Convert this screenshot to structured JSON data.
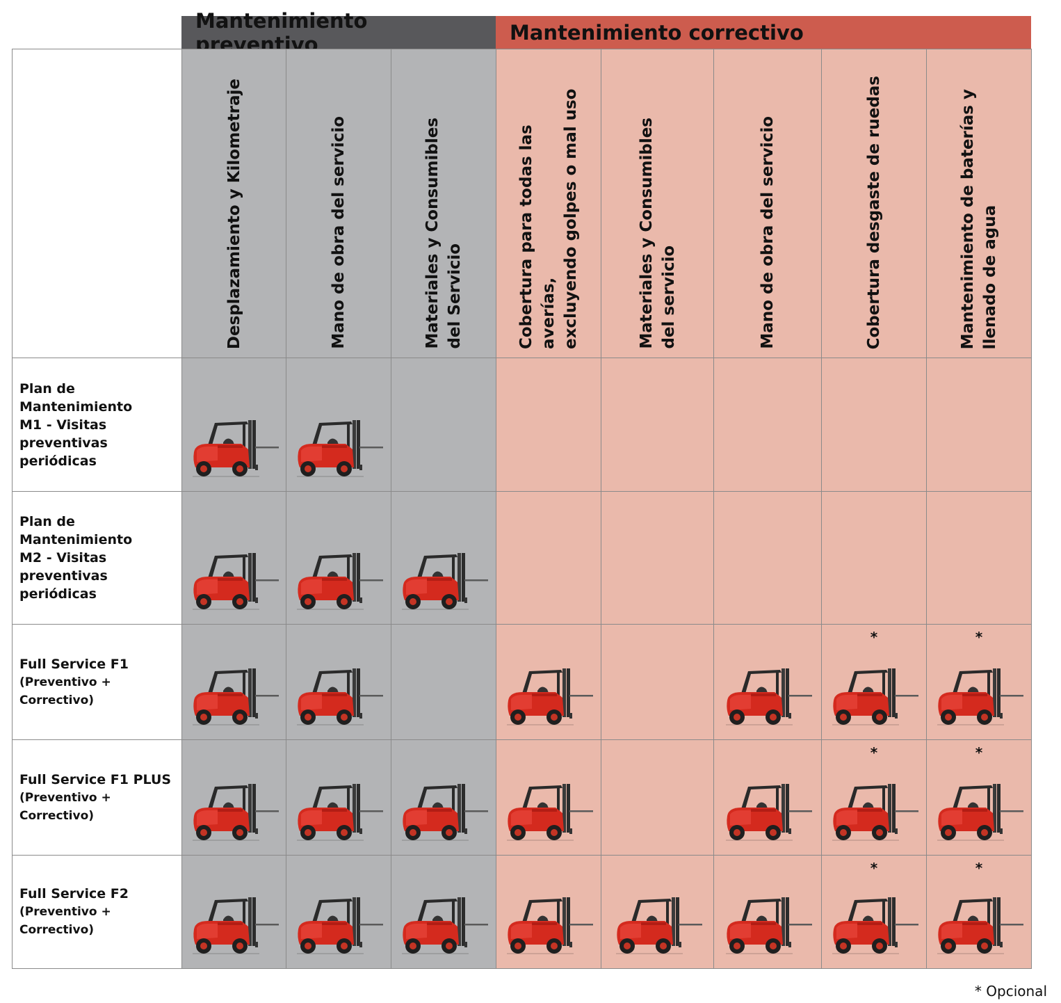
{
  "groups": {
    "preventive": "Mantenimiento preventivo",
    "corrective": "Mantenimiento correctivo"
  },
  "columns": [
    {
      "label": "Desplazamiento y Kilometraje",
      "group": "preventive"
    },
    {
      "label": "Mano de obra del servicio",
      "group": "preventive"
    },
    {
      "label": "Materiales y Consumibles\ndel Servicio",
      "group": "preventive"
    },
    {
      "label": "Cobertura para todas las averías,\nexcluyendo golpes o mal uso",
      "group": "corrective"
    },
    {
      "label": "Materiales y Consumibles\ndel servicio",
      "group": "corrective"
    },
    {
      "label": "Mano de obra del servicio",
      "group": "corrective"
    },
    {
      "label": "Cobertura desgaste de ruedas",
      "group": "corrective"
    },
    {
      "label": "Mantenimiento de baterías y\nllenado de agua",
      "group": "corrective"
    }
  ],
  "rows": [
    {
      "title": "Plan de Mantenimiento\nM1 - Visitas preventivas\nperiódicas",
      "subtitle": "",
      "cells": [
        "included",
        "included",
        "",
        "",
        "",
        "",
        "",
        ""
      ]
    },
    {
      "title": "Plan de Mantenimiento\nM2 - Visitas preventivas\nperiódicas",
      "subtitle": "",
      "cells": [
        "included",
        "included",
        "included",
        "",
        "",
        "",
        "",
        ""
      ]
    },
    {
      "title": "Full Service F1",
      "subtitle": "(Preventivo + Correctivo)",
      "cells": [
        "included",
        "included",
        "",
        "included",
        "",
        "included",
        "optional",
        "optional"
      ]
    },
    {
      "title": "Full Service F1 PLUS",
      "subtitle": "(Preventivo + Correctivo)",
      "cells": [
        "included",
        "included",
        "included",
        "included",
        "",
        "included",
        "optional",
        "optional"
      ]
    },
    {
      "title": "Full Service F2",
      "subtitle": "(Preventivo + Correctivo)",
      "cells": [
        "included",
        "included",
        "included",
        "included",
        "included",
        "included",
        "optional",
        "optional"
      ]
    }
  ],
  "optional_marker": "*",
  "footnote": "* Opcional",
  "icon": "forklift-icon",
  "colors": {
    "preventive_header": "#58585b",
    "corrective_header": "#cd5c4e",
    "preventive_cell": "#b3b4b6",
    "corrective_cell": "#eab9ab",
    "forklift_body": "#d42a1e"
  }
}
